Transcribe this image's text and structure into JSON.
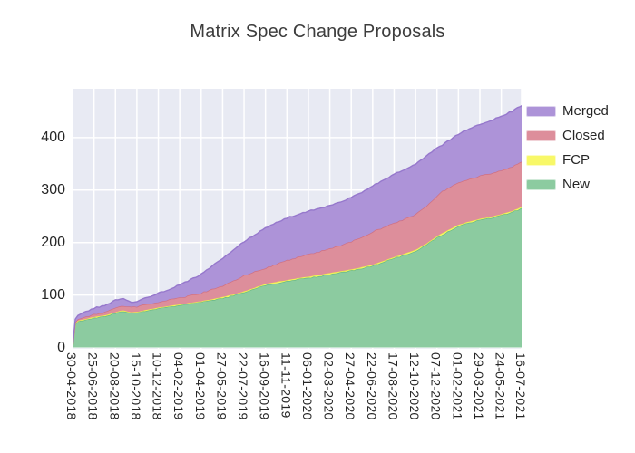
{
  "title": "Matrix Spec Change Proposals",
  "plot": {
    "background_color": "#e8eaf3",
    "gridline_color": "#ffffff",
    "tick_text_color": "#262626",
    "title_color": "#3d3d3d"
  },
  "legend": {
    "items": [
      {
        "label": "Merged",
        "color": "#ad93d8"
      },
      {
        "label": "Closed",
        "color": "#dd8e9b"
      },
      {
        "label": "FCP",
        "color": "#f8f868"
      },
      {
        "label": "New",
        "color": "#8ccba0"
      }
    ]
  },
  "chart_data": {
    "type": "area",
    "stacked": true,
    "title": "Matrix Spec Change Proposals",
    "xlabel": "",
    "ylabel": "",
    "grid": true,
    "legend_position": "top-right",
    "y_ticks": [
      0,
      100,
      200,
      300,
      400
    ],
    "y_max": 493,
    "x_start_date": "30-04-2018",
    "x_end_date": "16-07-2021",
    "x_total_days": 1173,
    "x_tick_labels": [
      "30-04-2018",
      "25-06-2018",
      "20-08-2018",
      "15-10-2018",
      "10-12-2018",
      "04-02-2019",
      "01-04-2019",
      "27-05-2019",
      "22-07-2019",
      "16-09-2019",
      "11-11-2019",
      "06-01-2020",
      "02-03-2020",
      "27-04-2020",
      "22-06-2020",
      "17-08-2020",
      "12-10-2020",
      "07-12-2020",
      "01-02-2021",
      "29-03-2021",
      "24-05-2021",
      "16-07-2021"
    ],
    "x_tick_day_offsets": [
      0,
      56,
      112,
      168,
      224,
      280,
      336,
      392,
      448,
      504,
      560,
      616,
      672,
      728,
      784,
      840,
      896,
      952,
      1008,
      1064,
      1120,
      1173
    ],
    "stack_order_bottom_to_top": [
      "New",
      "FCP",
      "Closed",
      "Merged"
    ],
    "series": [
      {
        "name": "New",
        "fill": "#8ccba0",
        "stroke": "#66b886"
      },
      {
        "name": "FCP",
        "fill": "#f8f868",
        "stroke": "#eded4d"
      },
      {
        "name": "Closed",
        "fill": "#dd8e9b",
        "stroke": "#d06f80"
      },
      {
        "name": "Merged",
        "fill": "#ad93d8",
        "stroke": "#9678cc"
      }
    ],
    "points": {
      "day": [
        0,
        7,
        14,
        28,
        56,
        84,
        112,
        131,
        152,
        168,
        196,
        224,
        252,
        280,
        308,
        336,
        364,
        392,
        420,
        448,
        476,
        504,
        532,
        560,
        588,
        616,
        644,
        672,
        700,
        728,
        756,
        784,
        812,
        840,
        868,
        896,
        924,
        952,
        966,
        1008,
        1036,
        1064,
        1092,
        1120,
        1148,
        1173
      ],
      "New": [
        0,
        44,
        50,
        52,
        57,
        60,
        66,
        70,
        66,
        67,
        71,
        75,
        78,
        81,
        84,
        87,
        90,
        94,
        99,
        105,
        112,
        119,
        123,
        126,
        130,
        133,
        136,
        140,
        143,
        147,
        151,
        156,
        163,
        170,
        177,
        184,
        196,
        210,
        215,
        232,
        238,
        243,
        247,
        252,
        258,
        266
      ],
      "FCP": [
        0,
        1,
        1,
        1,
        1,
        1,
        1,
        1,
        1,
        1,
        1,
        1,
        1,
        1,
        1,
        1,
        2,
        2,
        2,
        2,
        2,
        2,
        2,
        2,
        2,
        2,
        2,
        2,
        2,
        2,
        2,
        2,
        2,
        2,
        2,
        2,
        2,
        2,
        3,
        2,
        2,
        2,
        2,
        2,
        2,
        2
      ],
      "Closed": [
        0,
        3,
        3,
        4,
        5,
        6,
        8,
        9,
        10,
        10,
        11,
        11,
        12,
        13,
        14,
        16,
        19,
        22,
        26,
        31,
        31,
        30,
        34,
        38,
        40,
        43,
        45,
        47,
        50,
        53,
        58,
        63,
        64,
        65,
        66,
        68,
        72,
        76,
        80,
        80,
        81,
        82,
        83,
        84,
        85,
        86
      ],
      "Merged": [
        0,
        6,
        7,
        9,
        12,
        13,
        15,
        13,
        9,
        10,
        13,
        16,
        20,
        25,
        30,
        36,
        44,
        52,
        58,
        64,
        70,
        77,
        79,
        81,
        81,
        82,
        82,
        82,
        83,
        84,
        85,
        87,
        90,
        93,
        95,
        96,
        95,
        92,
        88,
        93,
        96,
        98,
        100,
        103,
        105,
        107
      ]
    },
    "final_values": {
      "New": 266,
      "FCP": 2,
      "Closed": 86,
      "Merged": 107,
      "total": 461
    }
  }
}
